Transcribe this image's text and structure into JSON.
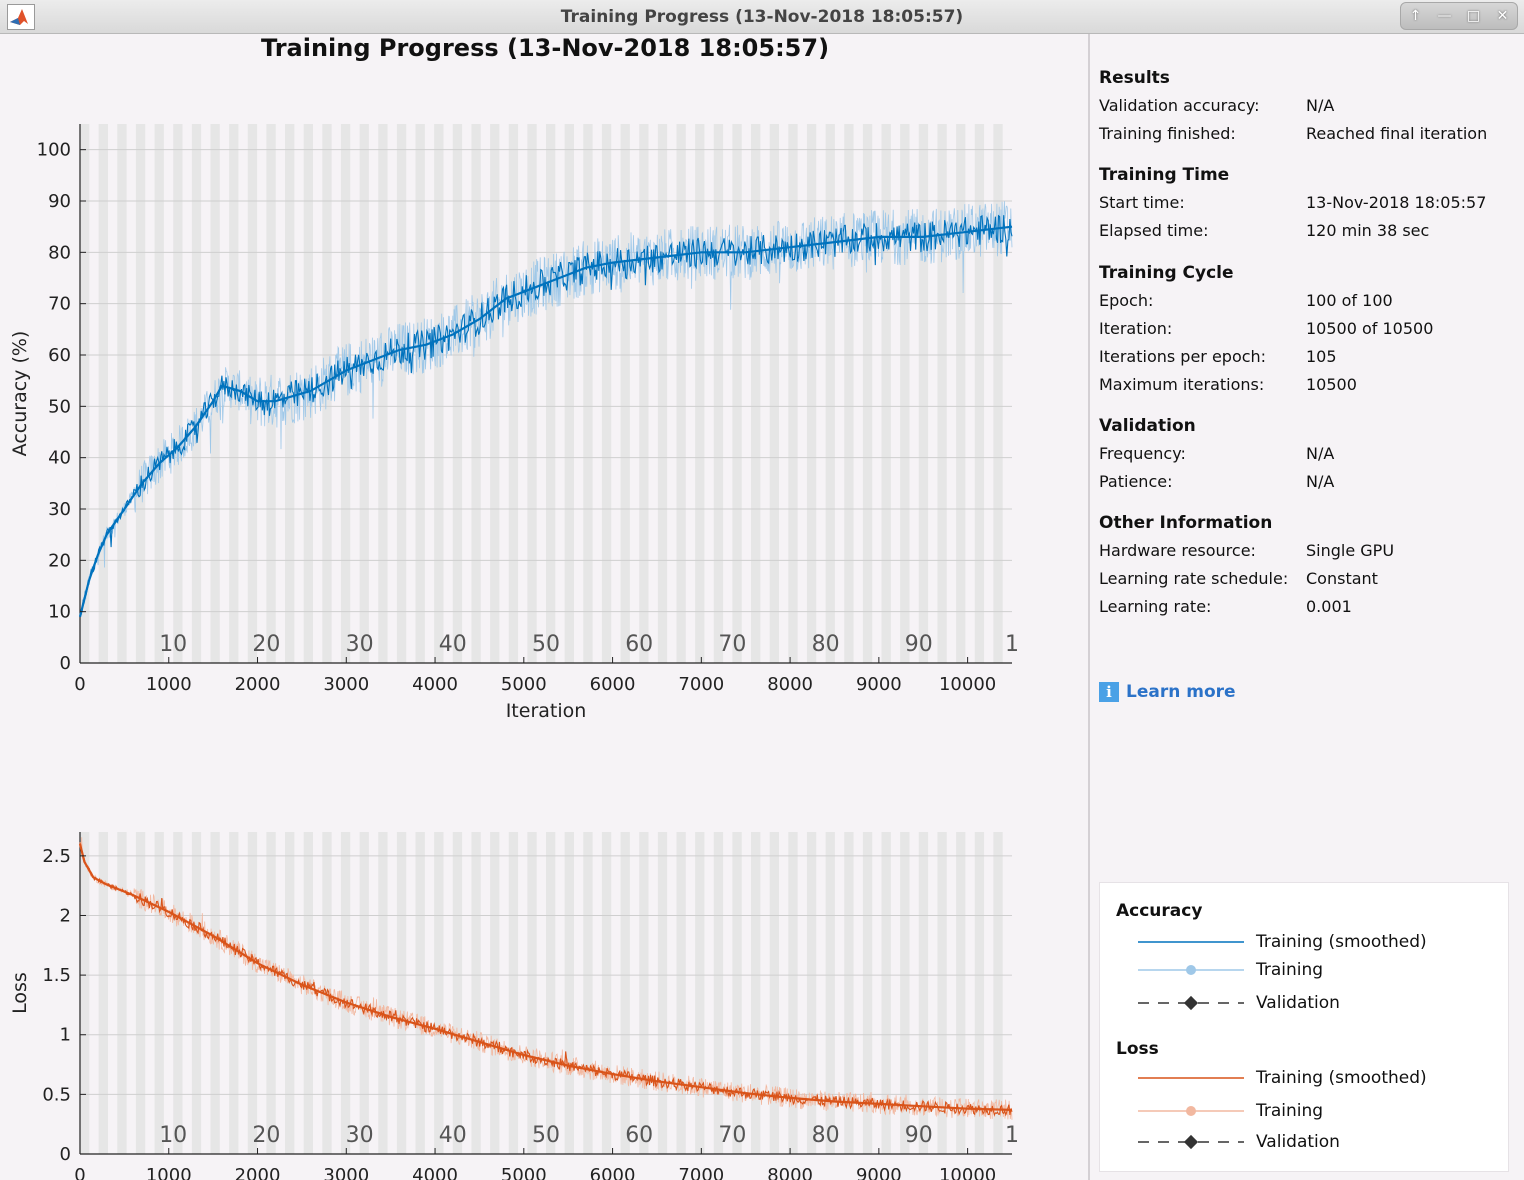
{
  "window": {
    "title": "Training Progress (13-Nov-2018 18:05:57)",
    "controls": [
      "up-arrow-icon",
      "minimize-icon",
      "maximize-icon",
      "close-icon"
    ]
  },
  "figure": {
    "title": "Training Progress (13-Nov-2018 18:05:57)"
  },
  "chart_data": [
    {
      "type": "line",
      "name": "accuracy",
      "xlabel": "Iteration",
      "ylabel": "Accuracy (%)",
      "xlim": [
        0,
        10500
      ],
      "ylim": [
        0,
        105
      ],
      "x_ticks": [
        0,
        1000,
        2000,
        3000,
        4000,
        5000,
        6000,
        7000,
        8000,
        9000,
        10000
      ],
      "y_ticks": [
        0,
        10,
        20,
        30,
        40,
        50,
        60,
        70,
        80,
        90,
        100
      ],
      "epoch_labels": [
        "10",
        "20",
        "30",
        "40",
        "50",
        "60",
        "70",
        "80",
        "90",
        "1"
      ],
      "epochs": 100,
      "iterations_per_epoch": 105,
      "grid": true,
      "color": "#0072bd",
      "smoothed": {
        "x": [
          0,
          100,
          200,
          300,
          500,
          700,
          900,
          1100,
          1300,
          1500,
          1600,
          1800,
          2000,
          2200,
          2400,
          2600,
          2800,
          3000,
          3300,
          3600,
          3900,
          4200,
          4500,
          4800,
          5100,
          5400,
          5700,
          6000,
          6500,
          7000,
          7500,
          8000,
          8500,
          9000,
          9500,
          10000,
          10500
        ],
        "y": [
          9,
          16,
          21,
          25,
          30,
          35,
          39,
          42,
          46,
          51,
          54,
          53,
          51,
          51,
          52,
          53,
          55,
          57,
          59,
          61,
          62,
          64,
          67,
          71,
          73,
          75,
          77,
          78,
          79,
          80,
          80,
          81,
          82,
          83,
          83,
          84,
          85
        ]
      }
    },
    {
      "type": "line",
      "name": "loss",
      "xlabel": "Iteration",
      "ylabel": "Loss",
      "xlim": [
        0,
        10500
      ],
      "ylim": [
        0,
        2.7
      ],
      "x_ticks": [
        0,
        1000,
        2000,
        3000,
        4000,
        5000,
        6000,
        7000,
        8000,
        9000,
        10000
      ],
      "y_ticks": [
        0,
        0.5,
        1,
        1.5,
        2,
        2.5
      ],
      "y_tick_labels": [
        "0",
        "0.5",
        "1",
        "1.5",
        "2",
        "2.5"
      ],
      "epoch_labels": [
        "10",
        "20",
        "30",
        "40",
        "50",
        "60",
        "70",
        "80",
        "90",
        "1"
      ],
      "epochs": 100,
      "iterations_per_epoch": 105,
      "grid": true,
      "color": "#d95319",
      "smoothed": {
        "x": [
          0,
          50,
          150,
          300,
          600,
          1000,
          1500,
          2000,
          2500,
          3000,
          3500,
          4000,
          4500,
          5000,
          5500,
          6000,
          6500,
          7000,
          7500,
          8000,
          8500,
          9000,
          9500,
          10000,
          10500
        ],
        "y": [
          2.6,
          2.45,
          2.32,
          2.26,
          2.17,
          2.03,
          1.83,
          1.6,
          1.42,
          1.27,
          1.15,
          1.05,
          0.94,
          0.83,
          0.74,
          0.67,
          0.61,
          0.56,
          0.51,
          0.47,
          0.44,
          0.42,
          0.4,
          0.38,
          0.37
        ]
      }
    }
  ],
  "info": {
    "sections": [
      {
        "heading": "Results",
        "rows": [
          {
            "label": "Validation accuracy:",
            "value": "N/A"
          },
          {
            "label": "Training finished:",
            "value": "Reached final iteration"
          }
        ]
      },
      {
        "heading": "Training Time",
        "rows": [
          {
            "label": "Start time:",
            "value": "13-Nov-2018 18:05:57"
          },
          {
            "label": "Elapsed time:",
            "value": "120 min 38 sec"
          }
        ]
      },
      {
        "heading": "Training Cycle",
        "rows": [
          {
            "label": "Epoch:",
            "value": "100 of 100"
          },
          {
            "label": "Iteration:",
            "value": "10500 of 10500"
          },
          {
            "label": "Iterations per epoch:",
            "value": "105"
          },
          {
            "label": "Maximum iterations:",
            "value": "10500"
          }
        ]
      },
      {
        "heading": "Validation",
        "rows": [
          {
            "label": "Frequency:",
            "value": "N/A"
          },
          {
            "label": "Patience:",
            "value": "N/A"
          }
        ]
      },
      {
        "heading": "Other Information",
        "rows": [
          {
            "label": "Hardware resource:",
            "value": "Single GPU"
          },
          {
            "label": "Learning rate schedule:",
            "value": "Constant"
          },
          {
            "label": "Learning rate:",
            "value": "0.001"
          }
        ]
      }
    ],
    "learn_more": "Learn more",
    "info_icon_glyph": "i"
  },
  "legend": {
    "accuracy": {
      "heading": "Accuracy",
      "items": [
        "Training (smoothed)",
        "Training",
        "Validation"
      ]
    },
    "loss": {
      "heading": "Loss",
      "items": [
        "Training (smoothed)",
        "Training",
        "Validation"
      ]
    },
    "colors": {
      "accuracy_smoothed": "#0072bd",
      "accuracy_training": "#9fc8e8",
      "loss_smoothed": "#d95319",
      "loss_training": "#f2b8a0",
      "validation": "#333333"
    }
  }
}
